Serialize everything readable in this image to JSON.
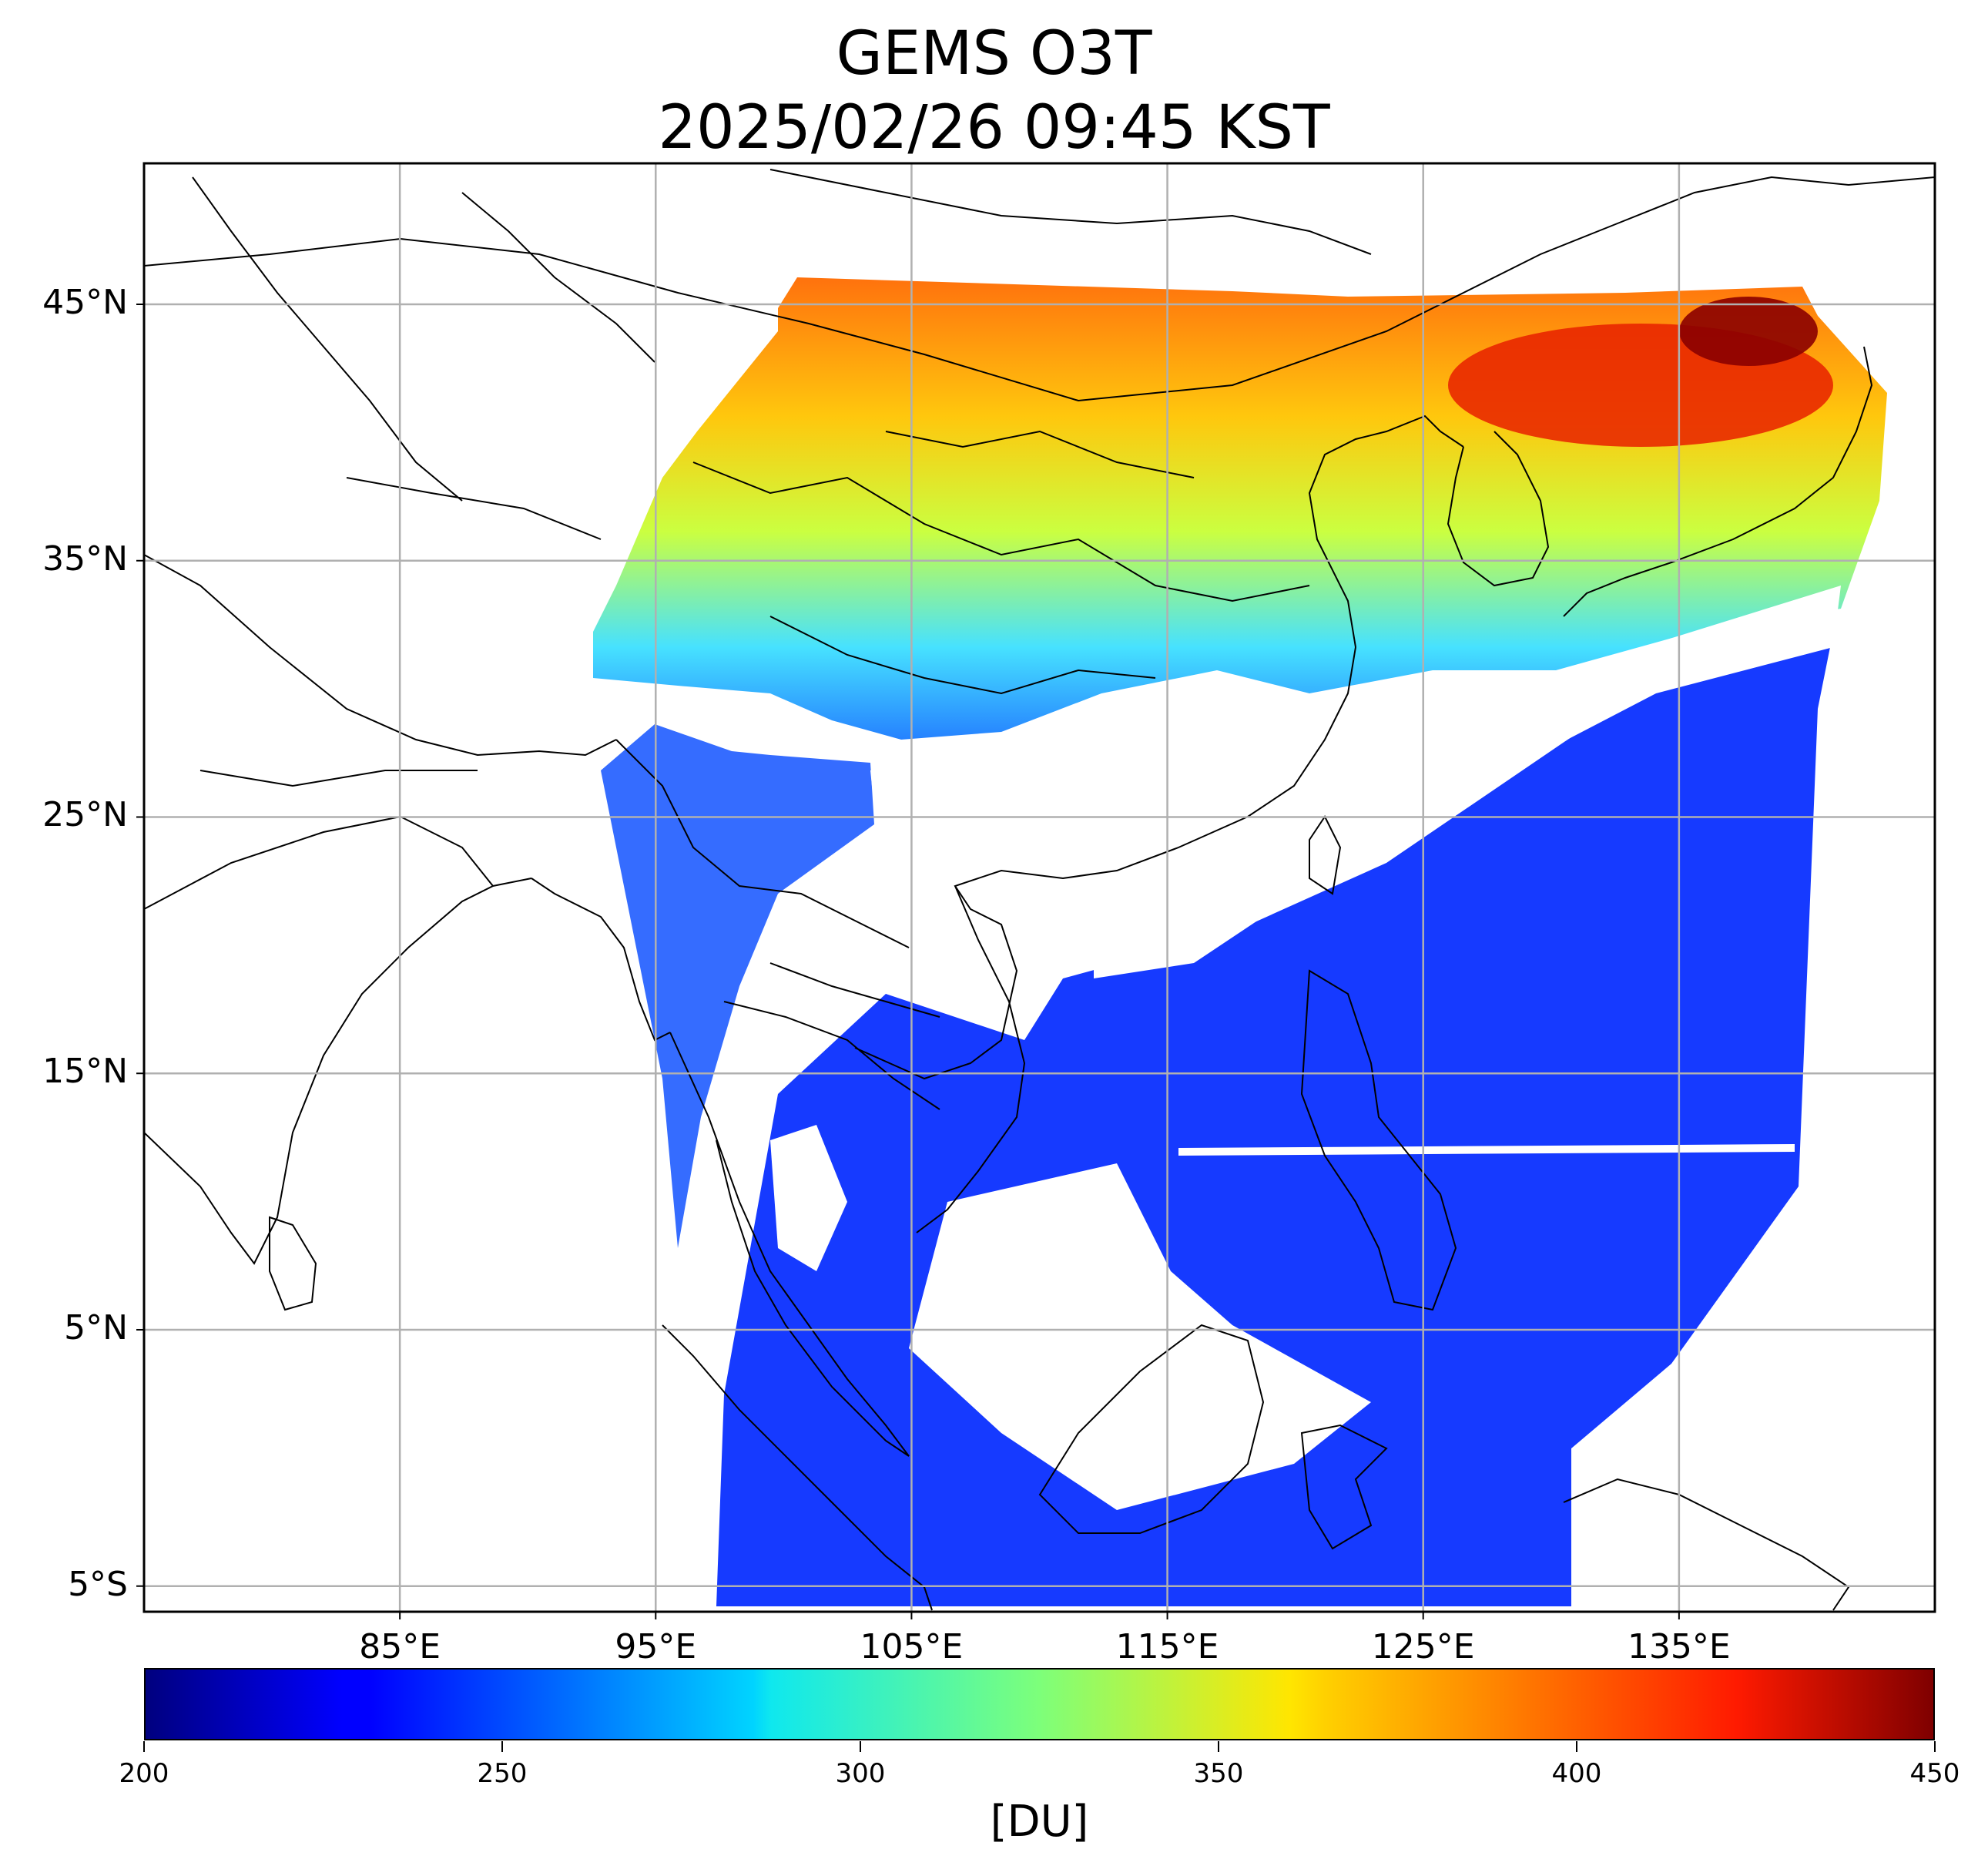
{
  "title": {
    "line1": "GEMS O3T",
    "line2": "2025/02/26 09:45 KST"
  },
  "map": {
    "projection": "lat-lon",
    "lon_range": [
      75,
      145
    ],
    "lat_range": [
      -6,
      50.5
    ],
    "gridlines": true,
    "lat_ticks": [
      {
        "value": 45,
        "label": "45°N"
      },
      {
        "value": 35,
        "label": "35°N"
      },
      {
        "value": 25,
        "label": "25°N"
      },
      {
        "value": 15,
        "label": "15°N"
      },
      {
        "value": 5,
        "label": "5°N"
      },
      {
        "value": -5,
        "label": "5°S"
      }
    ],
    "lon_ticks": [
      {
        "value": 85,
        "label": "85°E"
      },
      {
        "value": 95,
        "label": "95°E"
      },
      {
        "value": 105,
        "label": "105°E"
      },
      {
        "value": 115,
        "label": "115°E"
      },
      {
        "value": 125,
        "label": "125°E"
      },
      {
        "value": 135,
        "label": "135°E"
      }
    ],
    "field": "total column ozone",
    "colors": {
      "low": "#0000ff",
      "mid": "#19ffe2",
      "high": "#8b0000",
      "boundary": "#000000",
      "grid": "#b0b0b0"
    }
  },
  "colorbar": {
    "range": [
      200,
      450
    ],
    "ticks": [
      "200",
      "250",
      "300",
      "350",
      "400",
      "450"
    ],
    "unit": "[DU]",
    "colormap": "jet"
  }
}
